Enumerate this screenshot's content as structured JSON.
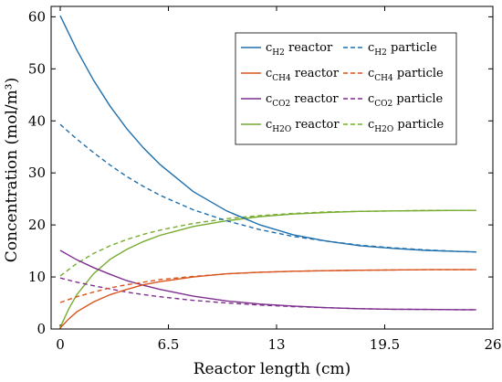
{
  "chart_data": {
    "type": "line",
    "title": "",
    "xlabel": "Reactor length (cm)",
    "ylabel": "Concentration (mol/m³)",
    "xlim": [
      0,
      26
    ],
    "ylim": [
      0,
      62
    ],
    "xticks": [
      0,
      6.5,
      13,
      19.5,
      26
    ],
    "yticks": [
      0,
      10,
      20,
      30,
      40,
      50,
      60
    ],
    "grid": false,
    "legend_position": "top-right",
    "series": [
      {
        "name": "H2 reactor",
        "sub": "H2",
        "label_suffix": "reactor",
        "color": "#1f6fad",
        "style": "solid",
        "x": [
          0,
          1,
          2,
          3,
          4,
          5,
          6,
          8,
          10,
          12,
          14,
          16,
          18,
          20,
          22,
          24,
          25
        ],
        "y": [
          60.2,
          53.6,
          47.8,
          42.8,
          38.5,
          34.8,
          31.6,
          26.4,
          22.7,
          20.0,
          18.1,
          16.9,
          16.0,
          15.5,
          15.1,
          14.9,
          14.8
        ]
      },
      {
        "name": "H2 particle",
        "sub": "H2",
        "label_suffix": "particle",
        "color": "#1f6fad",
        "style": "dashed",
        "x": [
          0,
          1,
          2,
          3,
          4,
          5,
          6,
          8,
          10,
          12,
          14,
          16,
          18,
          20,
          22,
          24,
          25
        ],
        "y": [
          39.3,
          36.5,
          33.9,
          31.5,
          29.3,
          27.4,
          25.7,
          22.9,
          20.8,
          19.1,
          17.8,
          16.9,
          16.1,
          15.6,
          15.2,
          14.9,
          14.8
        ]
      },
      {
        "name": "CH4 reactor",
        "sub": "CH4",
        "label_suffix": "reactor",
        "color": "#d9541e",
        "style": "solid",
        "x": [
          0,
          0.5,
          1,
          2,
          3,
          4,
          5,
          6,
          8,
          10,
          12,
          14,
          16,
          18,
          20,
          22,
          24,
          25
        ],
        "y": [
          0.2,
          1.9,
          3.3,
          5.2,
          6.6,
          7.6,
          8.5,
          9.1,
          10.0,
          10.6,
          10.9,
          11.1,
          11.2,
          11.3,
          11.35,
          11.4,
          11.4,
          11.4
        ]
      },
      {
        "name": "CH4 particle",
        "sub": "CH4",
        "label_suffix": "particle",
        "color": "#d9541e",
        "style": "dashed",
        "x": [
          0,
          1,
          2,
          3,
          4,
          5,
          6,
          8,
          10,
          12,
          14,
          16,
          18,
          20,
          22,
          24,
          25
        ],
        "y": [
          5.1,
          6.2,
          7.1,
          7.9,
          8.5,
          9.0,
          9.5,
          10.1,
          10.6,
          10.9,
          11.1,
          11.2,
          11.3,
          11.35,
          11.4,
          11.4,
          11.4
        ]
      },
      {
        "name": "CO2 reactor",
        "sub": "CO2",
        "label_suffix": "reactor",
        "color": "#7e2f8e",
        "style": "solid",
        "x": [
          0,
          1,
          2,
          3,
          4,
          5,
          6,
          8,
          10,
          12,
          14,
          16,
          18,
          20,
          22,
          24,
          25
        ],
        "y": [
          15.1,
          13.3,
          11.8,
          10.5,
          9.3,
          8.4,
          7.6,
          6.3,
          5.4,
          4.8,
          4.4,
          4.1,
          3.9,
          3.8,
          3.75,
          3.7,
          3.7
        ]
      },
      {
        "name": "CO2 particle",
        "sub": "CO2",
        "label_suffix": "particle",
        "color": "#7e2f8e",
        "style": "dashed",
        "x": [
          0,
          1,
          2,
          3,
          4,
          5,
          6,
          8,
          10,
          12,
          14,
          16,
          18,
          20,
          22,
          24,
          25
        ],
        "y": [
          9.8,
          9.0,
          8.3,
          7.7,
          7.1,
          6.6,
          6.2,
          5.5,
          5.0,
          4.6,
          4.3,
          4.1,
          3.9,
          3.8,
          3.75,
          3.7,
          3.7
        ]
      },
      {
        "name": "H2O reactor",
        "sub": "H2O",
        "label_suffix": "reactor",
        "color": "#77ac30",
        "style": "solid",
        "x": [
          0,
          0.5,
          1,
          2,
          3,
          4,
          5,
          6,
          8,
          10,
          12,
          14,
          16,
          18,
          20,
          22,
          24,
          25
        ],
        "y": [
          0.3,
          3.8,
          6.6,
          10.6,
          13.4,
          15.3,
          16.8,
          18.0,
          19.7,
          20.8,
          21.6,
          22.1,
          22.4,
          22.6,
          22.7,
          22.75,
          22.8,
          22.8
        ]
      },
      {
        "name": "H2O particle",
        "sub": "H2O",
        "label_suffix": "particle",
        "color": "#77ac30",
        "style": "dashed",
        "x": [
          0,
          1,
          2,
          3,
          4,
          5,
          6,
          8,
          10,
          12,
          14,
          16,
          18,
          20,
          22,
          24,
          25
        ],
        "y": [
          10.2,
          12.6,
          14.5,
          16.0,
          17.2,
          18.2,
          19.0,
          20.3,
          21.2,
          21.8,
          22.2,
          22.5,
          22.6,
          22.7,
          22.8,
          22.8,
          22.8
        ]
      }
    ]
  }
}
